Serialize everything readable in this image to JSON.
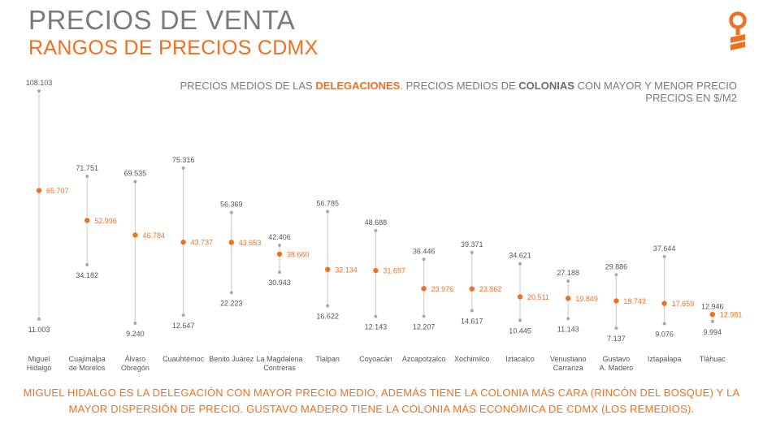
{
  "header": {
    "title": "PRECIOS DE VENTA",
    "subtitle": "RANGOS DE PRECIOS CDMX"
  },
  "description": {
    "line1_a": "PRECIOS MEDIOS DE LAS ",
    "line1_b": "DELEGACIONES",
    "line1_c": ". PRECIOS MEDIOS DE ",
    "line1_d": "COLONIAS",
    "line1_e": " CON MAYOR Y MENOR PRECIO",
    "line2": "PRECIOS EN $/M2"
  },
  "footer": {
    "text": "MIGUEL HIDALGO ES LA DELEGACIÓN CON MAYOR PRECIO MEDIO, ADEMÁS TIENE LA COLONIA MÁS CARA (RINCÓN DEL BOSQUE) Y LA MAYOR DISPERSIÓN DE PRECIO. GUSTAVO MADERO TIENE LA COLONIA MÁS ECONÓMICA DE CDMX (LOS REMEDIOS)."
  },
  "colors": {
    "accent": "#f07020",
    "range": "#a8a8a8",
    "text": "#555555"
  },
  "chart_data": {
    "type": "scatter",
    "unit": "$/M2",
    "ylim": [
      0,
      110000
    ],
    "grid": false,
    "items": [
      {
        "label": "Miguel Hidalgo",
        "max": 108103,
        "mean": 65707,
        "min": 11003,
        "max_label": "108.103",
        "mean_label": "65.707",
        "min_label": "11.003"
      },
      {
        "label": "Cuajimalpa de Morelos",
        "max": 71751,
        "mean": 52996,
        "min": 34182,
        "max_label": "71.751",
        "mean_label": "52.996",
        "min_label": "34.182"
      },
      {
        "label": "Álvaro Obregón",
        "max": 69535,
        "mean": 46784,
        "min": 9240,
        "max_label": "69.535",
        "mean_label": "46.784",
        "min_label": "9.240"
      },
      {
        "label": "Cuauhtémoc",
        "max": 75316,
        "mean": 43737,
        "min": 12647,
        "max_label": "75.316",
        "mean_label": "43.737",
        "min_label": "12.647"
      },
      {
        "label": "Benito Juárez",
        "max": 56369,
        "mean": 43653,
        "min": 22223,
        "max_label": "56.369",
        "mean_label": "43.653",
        "min_label": "22.223"
      },
      {
        "label": "La Magdalena Contreras",
        "max": 42406,
        "mean": 38660,
        "min": 30943,
        "max_label": "42.406",
        "mean_label": "38.660",
        "min_label": "30.943"
      },
      {
        "label": "Tlalpan",
        "max": 56785,
        "mean": 32134,
        "min": 16622,
        "max_label": "56.785",
        "mean_label": "32.134",
        "min_label": "16.622"
      },
      {
        "label": "Coyoacán",
        "max": 48688,
        "mean": 31697,
        "min": 12143,
        "max_label": "48.688",
        "mean_label": "31.697",
        "min_label": "12.143"
      },
      {
        "label": "Azcapotzalco",
        "max": 36446,
        "mean": 23976,
        "min": 12207,
        "max_label": "36.446",
        "mean_label": "23.976",
        "min_label": "12.207"
      },
      {
        "label": "Xochimilco",
        "max": 39371,
        "mean": 23862,
        "min": 14617,
        "max_label": "39.371",
        "mean_label": "23.862",
        "min_label": "14.617"
      },
      {
        "label": "Iztacalco",
        "max": 34621,
        "mean": 20511,
        "min": 10445,
        "max_label": "34.621",
        "mean_label": "20.511",
        "min_label": "10.445"
      },
      {
        "label": "Venustiano Carranza",
        "max": 27188,
        "mean": 19849,
        "min": 11143,
        "max_label": "27.188",
        "mean_label": "19.849",
        "min_label": "11.143"
      },
      {
        "label": "Gustavo A. Madero",
        "max": 29886,
        "mean": 18743,
        "min": 7137,
        "max_label": "29.886",
        "mean_label": "18.743",
        "min_label": "7.137"
      },
      {
        "label": "Iztapalapa",
        "max": 37644,
        "mean": 17659,
        "min": 9076,
        "max_label": "37.644",
        "mean_label": "17.659",
        "min_label": "9.076"
      },
      {
        "label": "Tláhuac",
        "max": 12946,
        "mean": 12981,
        "min": 9994,
        "max_label": "12.946",
        "mean_label": "12.981",
        "min_label": "9.994"
      }
    ]
  }
}
